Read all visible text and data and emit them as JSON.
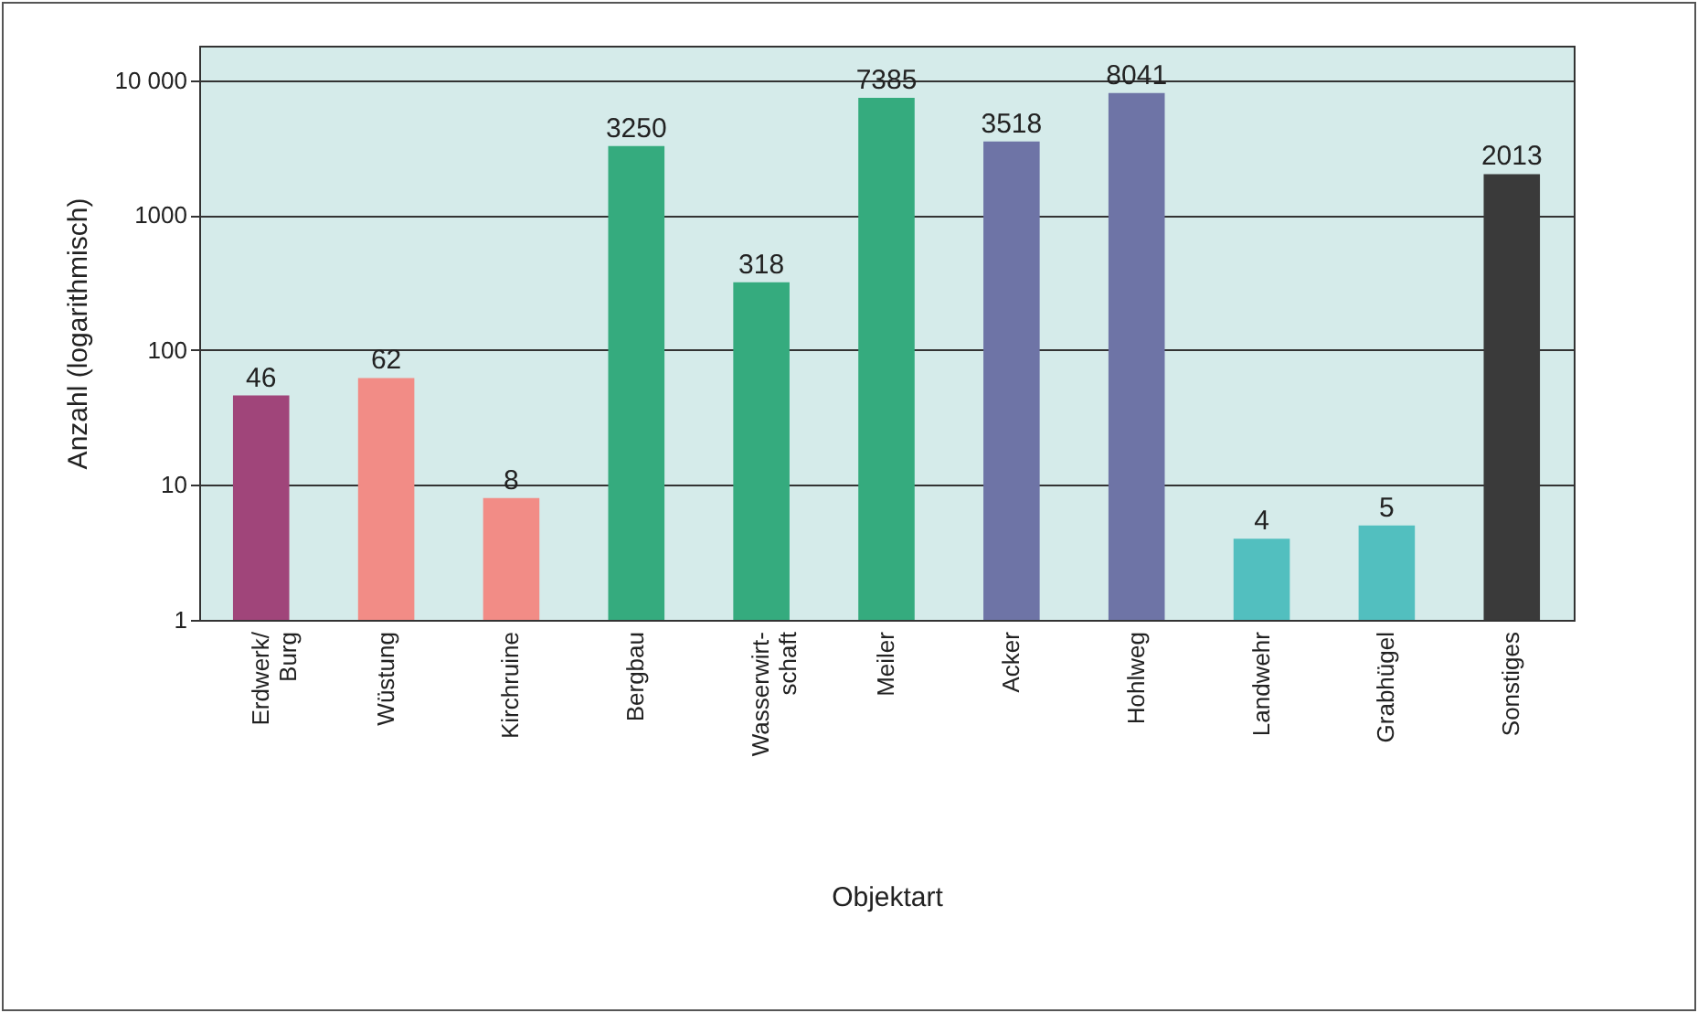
{
  "chart_data": {
    "type": "bar",
    "xlabel": "Objektart",
    "ylabel": "Anzahl (logarithmisch)",
    "categories": [
      "Erdwerk/\nBurg",
      "Wüstung",
      "Kirchruine",
      "Bergbau",
      "Wasserwirt-\nschaft",
      "Meiler",
      "Acker",
      "Hohlweg",
      "Landwehr",
      "Grabhügel",
      "Sonstiges"
    ],
    "values": [
      46,
      62,
      8,
      3250,
      318,
      7385,
      3518,
      8041,
      4,
      5,
      2013
    ],
    "colors": [
      "#a0457a",
      "#f28c86",
      "#f28c86",
      "#35ab7e",
      "#35ab7e",
      "#35ab7e",
      "#6e74a6",
      "#6e74a6",
      "#52bfbf",
      "#52bfbf",
      "#3a3a3a"
    ],
    "log": "y",
    "ylim": [
      1,
      18000
    ],
    "yticks": [
      1,
      10,
      100,
      1000,
      {
        "value": 10000,
        "label": "10 000"
      }
    ],
    "grid": "y",
    "data_labels": true,
    "legend": false
  }
}
